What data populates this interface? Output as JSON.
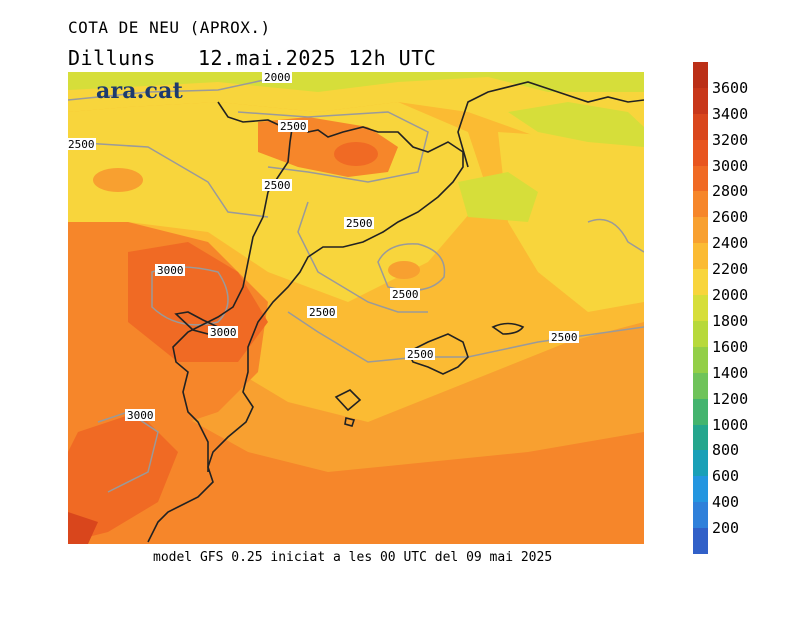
{
  "header": {
    "title": "COTA DE NEU (APROX.)",
    "day": "Dilluns",
    "datetime": "12.mai.2025 12h UTC"
  },
  "logo": {
    "text": "ara.cat"
  },
  "footer": {
    "text": "model GFS 0.25 iniciat a les 00 UTC del 09 mai 2025"
  },
  "legend": {
    "labels": [
      "3600",
      "3400",
      "3200",
      "3000",
      "2800",
      "2600",
      "2400",
      "2200",
      "2000",
      "1800",
      "1600",
      "1400",
      "1200",
      "1000",
      "800",
      "600",
      "400",
      "200"
    ],
    "colors": [
      "#c8371a",
      "#d9461c",
      "#e8551f",
      "#f06a24",
      "#f6862a",
      "#f8a030",
      "#fbbb33",
      "#f8d53c",
      "#d6de3a",
      "#b7d93b",
      "#93cf47",
      "#6fc35a",
      "#44b46e",
      "#25a68d",
      "#1aa0b7",
      "#2496e0",
      "#2f80da",
      "#3160c8"
    ]
  },
  "contours": {
    "labels": [
      "2000",
      "2500",
      "2500",
      "2500",
      "2500",
      "2500",
      "2500",
      "2500",
      "2500",
      "3000",
      "3000",
      "3000"
    ]
  }
}
